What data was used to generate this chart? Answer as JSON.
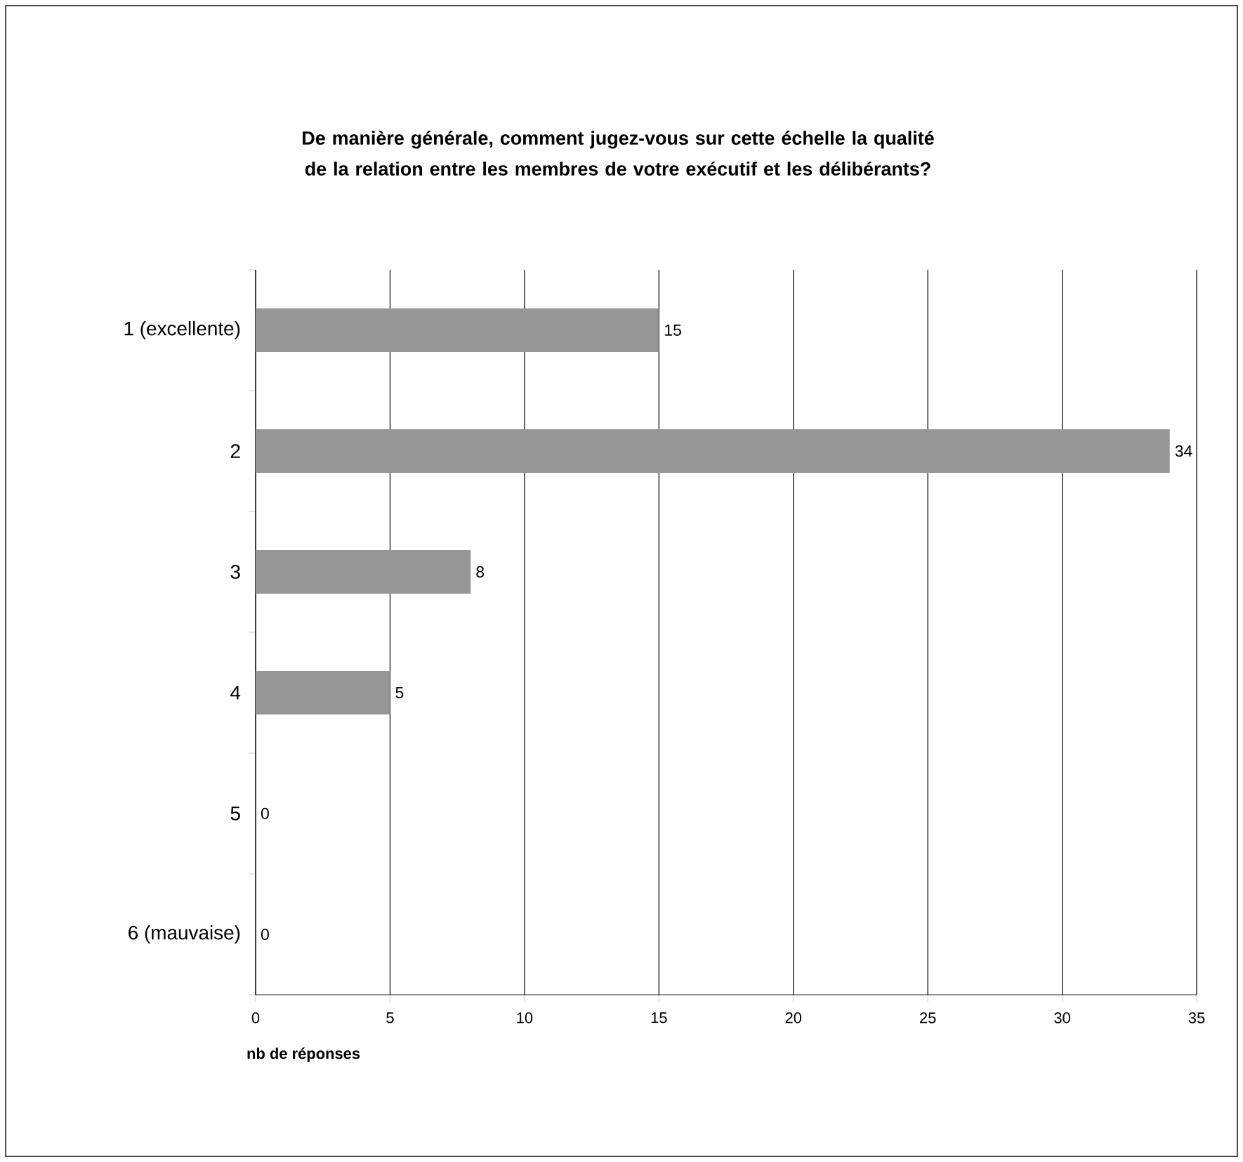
{
  "chart_data": {
    "type": "bar",
    "orientation": "horizontal",
    "title": "De manière générale, comment jugez-vous sur cette échelle la qualité de la relation entre les membres de votre exécutif et les délibérants?",
    "xlabel": "nb de réponses",
    "categories": [
      "1 (excellente)",
      "2",
      "3",
      "4",
      "5",
      "6 (mauvaise)"
    ],
    "values": [
      15,
      34,
      8,
      5,
      0,
      0
    ],
    "value_labels": [
      "15",
      "34",
      "8",
      "5",
      "0",
      "0"
    ],
    "color": "#969696",
    "xlim": [
      0,
      35
    ],
    "xticks": [
      0,
      5,
      10,
      15,
      20,
      25,
      30,
      35
    ],
    "grid": "x"
  }
}
